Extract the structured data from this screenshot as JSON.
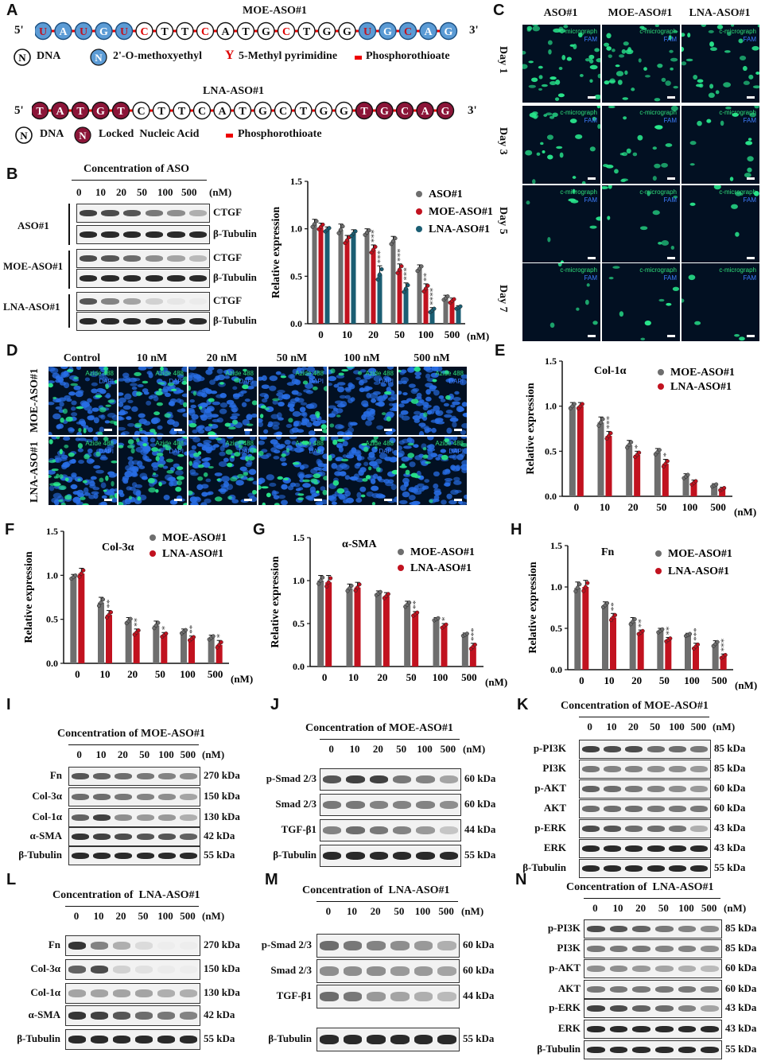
{
  "panels": {
    "A": "A",
    "B": "B",
    "C": "C",
    "D": "D",
    "E": "E",
    "F": "F",
    "G": "G",
    "H": "H",
    "I": "I",
    "J": "J",
    "K": "K",
    "L": "L",
    "M": "M",
    "N": "N"
  },
  "panelA": {
    "moe_title": "MOE-ASO#1",
    "lna_title": "LNA-ASO#1",
    "five": "5'",
    "three": "3'",
    "moe_seq": [
      "U",
      "A",
      "U",
      "G",
      "U",
      "C",
      "T",
      "T",
      "C",
      "A",
      "T",
      "G",
      "C",
      "T",
      "G",
      "G",
      "U",
      "G",
      "C",
      "A",
      "G"
    ],
    "lna_seq": [
      "T",
      "A",
      "T",
      "G",
      "T",
      "C",
      "T",
      "T",
      "C",
      "A",
      "T",
      "G",
      "C",
      "T",
      "G",
      "G",
      "T",
      "G",
      "C",
      "A",
      "G"
    ],
    "legend1": {
      "n": "N",
      "dna": "DNA",
      "moe": "2'-O-methoxyethyl",
      "y": "Y",
      "methyl": "5-Methyl pyrimidine",
      "pto": "Phosphorothioate"
    },
    "legend2": {
      "n": "N",
      "dna": "DNA",
      "lna": "Locked  Nucleic Acid",
      "pto": "Phosphorothioate"
    }
  },
  "panelB": {
    "conc_title": "Concentration of ASO",
    "concs": [
      "0",
      "10",
      "20",
      "50",
      "100",
      "500"
    ],
    "unit": "(nM)",
    "groups": [
      "ASO#1",
      "MOE-ASO#1",
      "LNA-ASO#1"
    ],
    "proteins": [
      "CTGF",
      "β-Tubulin"
    ]
  },
  "panelC": {
    "columns": [
      "ASO#1",
      "MOE-ASO#1",
      "LNA-ASO#1"
    ],
    "rows": [
      "Day 1",
      "Day 3",
      "Day 5",
      "Day 7"
    ],
    "fam": "FAM",
    "dapi": "DAPI"
  },
  "panelD": {
    "columns": [
      "Control",
      "10 nM",
      "20 nM",
      "50 nM",
      "100 nM",
      "500 nM"
    ],
    "rows": [
      "MOE-ASO#1",
      "LNA-ASO#1"
    ],
    "azide": "Azide 488",
    "dapi": "DAPI"
  },
  "panelI": {
    "title": "Concentration of MOE-ASO#1",
    "concs": [
      "0",
      "10",
      "20",
      "50",
      "100",
      "500"
    ],
    "unit": "(nM)",
    "proteins": [
      "Fn",
      "Col-3α",
      "Col-1α",
      "α-SMA",
      "β-Tubulin"
    ],
    "kda": [
      "270 kDa",
      "150 kDa",
      "130 kDa",
      "42 kDa",
      "55 kDa"
    ]
  },
  "panelJ": {
    "title": "Concentration of MOE-ASO#1",
    "concs": [
      "0",
      "10",
      "20",
      "50",
      "100",
      "500"
    ],
    "unit": "(nM)",
    "proteins": [
      "p-Smad 2/3",
      "Smad 2/3",
      "TGF-β1",
      "β-Tubulin"
    ],
    "kda": [
      "60 kDa",
      "60 kDa",
      "44 kDa",
      "55 kDa"
    ]
  },
  "panelK": {
    "title": "Concentration of MOE-ASO#1",
    "concs": [
      "0",
      "10",
      "20",
      "50",
      "100",
      "500"
    ],
    "unit": "(nM)",
    "proteins": [
      "p-PI3K",
      "PI3K",
      "p-AKT",
      "AKT",
      "p-ERK",
      "ERK",
      "β-Tubulin"
    ],
    "kda": [
      "85 kDa",
      "85 kDa",
      "60 kDa",
      "60 kDa",
      "43 kDa",
      "43 kDa",
      "55 kDa"
    ]
  },
  "panelL": {
    "title": "Concentration of  LNA-ASO#1",
    "concs": [
      "0",
      "10",
      "20",
      "50",
      "100",
      "500"
    ],
    "unit": "(nM)",
    "proteins": [
      "Fn",
      "Col-3α",
      "Col-1α",
      "α-SMA",
      "β-Tubulin"
    ],
    "kda": [
      "270 kDa",
      "150 kDa",
      "130 kDa",
      "42 kDa",
      "55 kDa"
    ]
  },
  "panelM": {
    "title": "Concentration of  LNA-ASO#1",
    "concs": [
      "0",
      "10",
      "20",
      "50",
      "100",
      "500"
    ],
    "unit": "(nM)",
    "proteins": [
      "p-Smad 2/3",
      "Smad 2/3",
      "TGF-β1",
      "β-Tubulin"
    ],
    "kda": [
      "60 kDa",
      "60 kDa",
      "44 kDa",
      "55 kDa"
    ]
  },
  "panelN": {
    "title": "Concentration of  LNA-ASO#1",
    "concs": [
      "0",
      "10",
      "20",
      "50",
      "100",
      "500"
    ],
    "unit": "(nM)",
    "proteins": [
      "p-PI3K",
      "PI3K",
      "p-AKT",
      "AKT",
      "p-ERK",
      "ERK",
      "β-Tubulin"
    ],
    "kda": [
      "85 kDa",
      "85 kDa",
      "60 kDa",
      "60 kDa",
      "43 kDa",
      "43 kDa",
      "55 kDa"
    ]
  },
  "colors": {
    "gray": "#6e6e6e",
    "red": "#c1121f",
    "teal": "#1b5e73",
    "moe_bead": "#5b9bd5",
    "lna_bead": "#8b1538"
  },
  "chart_data": [
    {
      "id": "B",
      "type": "bar",
      "categories": [
        "0",
        "10",
        "20",
        "50",
        "100",
        "500"
      ],
      "xunit": "(nM)",
      "ylabel": "Relative expression",
      "ylim": [
        0,
        1.5
      ],
      "yticks": [
        "0.0",
        "0.5",
        "1.0",
        "1.5"
      ],
      "legend_position": "top-right",
      "series": [
        {
          "name": "ASO#1",
          "color": "#6e6e6e",
          "values": [
            1.05,
            0.99,
            0.96,
            0.87,
            0.58,
            0.27
          ],
          "err": [
            0.05,
            0.06,
            0.04,
            0.05,
            0.04,
            0.03
          ],
          "sig": [
            "",
            "",
            "",
            "",
            "",
            ""
          ]
        },
        {
          "name": "MOE-ASO#1",
          "color": "#c1121f",
          "values": [
            1.02,
            0.88,
            0.78,
            0.57,
            0.37,
            0.24
          ],
          "err": [
            0.04,
            0.05,
            0.05,
            0.06,
            0.05,
            0.03
          ],
          "sig": [
            "",
            "",
            "***",
            "***",
            "**",
            ""
          ]
        },
        {
          "name": "LNA-ASO#1",
          "color": "#1b5e73",
          "values": [
            0.99,
            0.95,
            0.52,
            0.37,
            0.14,
            0.17
          ],
          "err": [
            0.03,
            0.04,
            0.09,
            0.06,
            0.03,
            0.02
          ],
          "sig": [
            "",
            "",
            "***",
            "***",
            "****",
            ""
          ]
        }
      ]
    },
    {
      "id": "E",
      "type": "bar",
      "title": "Col-1α",
      "categories": [
        "0",
        "10",
        "20",
        "50",
        "100",
        "500"
      ],
      "xunit": "(nM)",
      "ylabel": "Relative expression",
      "ylim": [
        0,
        1.5
      ],
      "yticks": [
        "0.0",
        "0.5",
        "1.0",
        "1.5"
      ],
      "series": [
        {
          "name": "MOE-ASO#1",
          "color": "#6e6e6e",
          "values": [
            1.0,
            0.82,
            0.57,
            0.49,
            0.22,
            0.12
          ],
          "err": [
            0.04,
            0.06,
            0.05,
            0.04,
            0.03,
            0.02
          ],
          "sig": [
            "",
            "",
            "",
            "",
            "",
            ""
          ]
        },
        {
          "name": "LNA-ASO#1",
          "color": "#c1121f",
          "values": [
            1.0,
            0.67,
            0.46,
            0.36,
            0.15,
            0.08
          ],
          "err": [
            0.04,
            0.05,
            0.04,
            0.05,
            0.03,
            0.02
          ],
          "sig": [
            "",
            "***",
            "*",
            "*",
            "",
            ""
          ]
        }
      ]
    },
    {
      "id": "F",
      "type": "bar",
      "title": "Col-3α",
      "categories": [
        "0",
        "10",
        "20",
        "50",
        "100",
        "500"
      ],
      "xunit": "(nM)",
      "ylabel": "Relative expression",
      "ylim": [
        0,
        1.5
      ],
      "yticks": [
        "0.0",
        "0.5",
        "1.0",
        "1.5"
      ],
      "series": [
        {
          "name": "MOE-ASO#1",
          "color": "#6e6e6e",
          "values": [
            0.98,
            0.69,
            0.48,
            0.43,
            0.36,
            0.29
          ],
          "err": [
            0.03,
            0.06,
            0.04,
            0.05,
            0.03,
            0.03
          ],
          "sig": [
            "",
            "",
            "",
            "",
            "",
            ""
          ]
        },
        {
          "name": "LNA-ASO#1",
          "color": "#c1121f",
          "values": [
            1.02,
            0.55,
            0.35,
            0.32,
            0.28,
            0.21
          ],
          "err": [
            0.06,
            0.05,
            0.04,
            0.03,
            0.03,
            0.05
          ],
          "sig": [
            "",
            "**",
            "**",
            "*",
            "**",
            "*"
          ]
        }
      ]
    },
    {
      "id": "G",
      "type": "bar",
      "title": "α-SMA",
      "categories": [
        "0",
        "10",
        "20",
        "50",
        "100",
        "500"
      ],
      "xunit": "(nM)",
      "ylabel": "Relative expression",
      "ylim": [
        0,
        1.5
      ],
      "yticks": [
        "0.0",
        "0.5",
        "1.0",
        "1.5"
      ],
      "series": [
        {
          "name": "MOE-ASO#1",
          "color": "#6e6e6e",
          "values": [
            1.0,
            0.91,
            0.85,
            0.72,
            0.55,
            0.37
          ],
          "err": [
            0.06,
            0.05,
            0.03,
            0.04,
            0.02,
            0.02
          ],
          "sig": [
            "",
            "",
            "",
            "",
            "",
            ""
          ]
        },
        {
          "name": "LNA-ASO#1",
          "color": "#c1121f",
          "values": [
            0.98,
            0.92,
            0.82,
            0.61,
            0.47,
            0.23
          ],
          "err": [
            0.08,
            0.06,
            0.04,
            0.03,
            0.03,
            0.04
          ],
          "sig": [
            "",
            "",
            "",
            "**",
            "*",
            "***"
          ]
        }
      ]
    },
    {
      "id": "H",
      "type": "bar",
      "title": "Fn",
      "categories": [
        "0",
        "10",
        "20",
        "50",
        "100",
        "500"
      ],
      "xunit": "(nM)",
      "ylabel": "Relative expression",
      "ylim": [
        0,
        1.5
      ],
      "yticks": [
        "0.0",
        "0.5",
        "1.0",
        "1.5"
      ],
      "series": [
        {
          "name": "MOE-ASO#1",
          "color": "#6e6e6e",
          "values": [
            0.99,
            0.78,
            0.58,
            0.47,
            0.42,
            0.31
          ],
          "err": [
            0.07,
            0.04,
            0.05,
            0.03,
            0.02,
            0.04
          ],
          "sig": [
            "",
            "",
            "",
            "",
            "",
            ""
          ]
        },
        {
          "name": "LNA-ASO#1",
          "color": "#c1121f",
          "values": [
            1.0,
            0.63,
            0.45,
            0.36,
            0.28,
            0.16
          ],
          "err": [
            0.08,
            0.05,
            0.03,
            0.03,
            0.04,
            0.03
          ],
          "sig": [
            "",
            "**",
            "**",
            "**",
            "***",
            "***"
          ]
        }
      ]
    }
  ]
}
